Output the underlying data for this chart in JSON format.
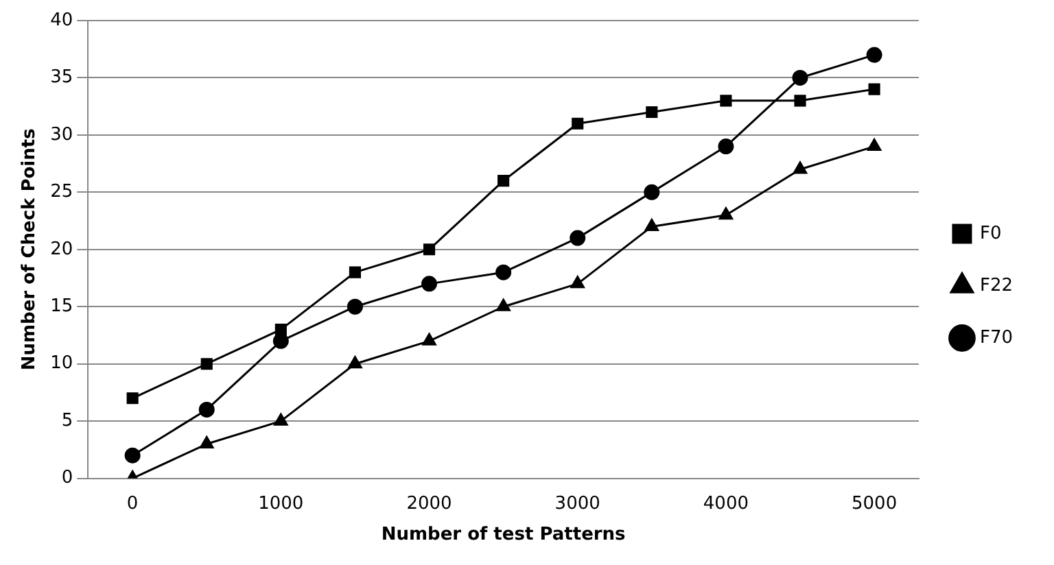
{
  "chart_data": {
    "type": "line",
    "xlabel": "Number of test Patterns",
    "ylabel": "Number of Check Points",
    "x": [
      0,
      500,
      1000,
      1500,
      2000,
      2500,
      3000,
      3500,
      4000,
      4500,
      5000
    ],
    "series": [
      {
        "name": "F0",
        "color": "#000000",
        "marker": "square",
        "values": [
          7,
          10,
          13,
          18,
          20,
          26,
          31,
          32,
          33,
          33,
          34
        ]
      },
      {
        "name": "F22",
        "color": "#000000",
        "marker": "triangle",
        "values": [
          0,
          3,
          5,
          10,
          12,
          15,
          17,
          22,
          23,
          27,
          29
        ]
      },
      {
        "name": "F70",
        "color": "#000000",
        "marker": "circle",
        "values": [
          2,
          6,
          12,
          15,
          17,
          18,
          21,
          25,
          29,
          35,
          37
        ]
      }
    ],
    "xlim": [
      -300,
      5300
    ],
    "xticks": [
      0,
      1000,
      2000,
      3000,
      4000,
      5000
    ],
    "ylim": [
      0,
      40
    ],
    "yticks": [
      0,
      5,
      10,
      15,
      20,
      25,
      30,
      35,
      40
    ],
    "grid": "y",
    "legend": "right"
  }
}
